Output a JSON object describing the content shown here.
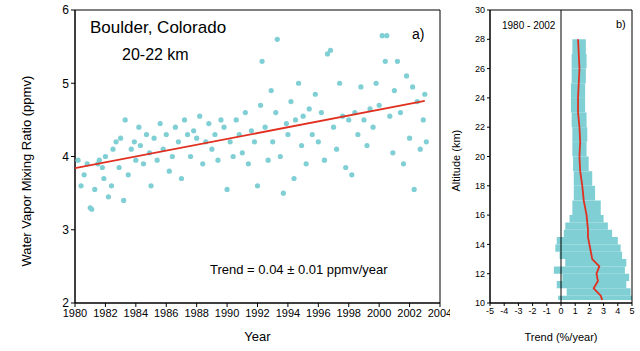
{
  "chart_data": [
    {
      "type": "scatter",
      "title": "Boulder, Colorado",
      "subtitle": "20-22 km",
      "annotations": [
        "a)",
        "Trend = 0.04 ± 0.01 ppmv/year"
      ],
      "x_label": "Year",
      "y_label": "Water Vapor Mixing Ratio (ppmv)",
      "xlim": [
        1980,
        2004
      ],
      "xticks": [
        1980,
        1982,
        1984,
        1986,
        1988,
        1990,
        1992,
        1994,
        1996,
        1998,
        2000,
        2002,
        2004
      ],
      "ylim": [
        2,
        6
      ],
      "yticks": [
        2,
        3,
        4,
        5,
        6
      ],
      "series": [
        {
          "type": "scatter",
          "color": "#7fcfd4",
          "x": [
            1980.2,
            1980.4,
            1980.6,
            1980.8,
            1981.0,
            1981.1,
            1981.3,
            1981.5,
            1981.6,
            1981.8,
            1981.9,
            1982.0,
            1982.2,
            1982.4,
            1982.5,
            1982.7,
            1982.9,
            1983.0,
            1983.2,
            1983.3,
            1983.5,
            1983.7,
            1983.9,
            1984.0,
            1984.2,
            1984.3,
            1984.5,
            1984.7,
            1984.9,
            1985.0,
            1985.2,
            1985.4,
            1985.6,
            1985.8,
            1986.0,
            1986.2,
            1986.4,
            1986.6,
            1986.8,
            1987.0,
            1987.2,
            1987.4,
            1987.6,
            1987.8,
            1988.0,
            1988.2,
            1988.4,
            1988.6,
            1988.8,
            1989.0,
            1989.2,
            1989.4,
            1989.6,
            1989.8,
            1990.0,
            1990.2,
            1990.4,
            1990.6,
            1990.8,
            1991.0,
            1991.2,
            1991.4,
            1991.6,
            1991.8,
            1992.0,
            1992.2,
            1992.3,
            1992.5,
            1992.7,
            1992.9,
            1993.0,
            1993.2,
            1993.3,
            1993.5,
            1993.7,
            1993.9,
            1994.0,
            1994.2,
            1994.4,
            1994.5,
            1994.7,
            1994.9,
            1995.0,
            1995.2,
            1995.4,
            1995.6,
            1995.8,
            1996.0,
            1996.2,
            1996.4,
            1996.6,
            1996.8,
            1997.0,
            1997.2,
            1997.4,
            1997.6,
            1997.8,
            1998.0,
            1998.2,
            1998.4,
            1998.6,
            1998.8,
            1999.0,
            1999.2,
            1999.4,
            1999.6,
            1999.8,
            2000.0,
            2000.2,
            2000.4,
            2000.5,
            2000.7,
            2000.9,
            2001.0,
            2001.2,
            2001.4,
            2001.6,
            2001.8,
            2002.0,
            2002.2,
            2002.3,
            2002.5,
            2002.7,
            2002.9,
            2003.0,
            2003.1
          ],
          "values": [
            3.95,
            3.6,
            3.75,
            3.9,
            3.3,
            3.28,
            3.55,
            3.9,
            3.95,
            3.85,
            3.7,
            4.0,
            3.45,
            3.6,
            4.1,
            4.2,
            3.85,
            4.25,
            3.4,
            4.5,
            3.75,
            4.1,
            4.2,
            3.95,
            4.4,
            4.15,
            3.9,
            4.3,
            4.05,
            3.6,
            4.25,
            3.95,
            4.45,
            4.1,
            4.3,
            3.8,
            4.0,
            4.4,
            4.2,
            3.7,
            4.5,
            4.3,
            4.0,
            4.35,
            4.25,
            4.55,
            3.9,
            4.2,
            4.45,
            4.1,
            4.3,
            3.95,
            4.5,
            4.4,
            3.55,
            4.2,
            4.0,
            4.5,
            4.3,
            4.05,
            4.6,
            3.9,
            4.35,
            4.2,
            3.6,
            4.7,
            5.3,
            4.4,
            3.95,
            4.9,
            4.2,
            4.6,
            5.6,
            4.0,
            3.5,
            4.45,
            4.3,
            4.75,
            3.7,
            4.5,
            5.0,
            4.15,
            4.55,
            3.9,
            4.65,
            4.3,
            4.85,
            4.2,
            4.6,
            3.95,
            5.4,
            5.45,
            4.4,
            4.1,
            5.0,
            4.55,
            3.85,
            4.5,
            3.75,
            4.6,
            4.3,
            4.95,
            4.5,
            4.15,
            4.65,
            4.4,
            5.0,
            4.7,
            5.65,
            5.3,
            5.65,
            4.55,
            4.05,
            4.9,
            5.3,
            4.6,
            3.9,
            5.1,
            4.25,
            4.95,
            3.55,
            4.75,
            4.1,
            4.5,
            4.85,
            4.2
          ]
        },
        {
          "type": "line",
          "color": "#e03020",
          "x": [
            1980,
            2003
          ],
          "values": [
            3.84,
            4.76
          ]
        }
      ]
    },
    {
      "type": "line",
      "annotations": [
        "b)",
        "1980 - 2002"
      ],
      "x_label": "Trend (%/year)",
      "y_label": "Altitude (km)",
      "xlim": [
        -5,
        5
      ],
      "xticks": [
        -5,
        -4,
        -3,
        -2,
        -1,
        0,
        1,
        2,
        3,
        4,
        5
      ],
      "ylim": [
        10,
        30
      ],
      "yticks": [
        10,
        12,
        14,
        16,
        18,
        20,
        22,
        24,
        26,
        28,
        30
      ],
      "reference_line_x": 0,
      "series": [
        {
          "type": "band",
          "color": "#7fcfd4",
          "y": [
            10.2,
            10.5,
            11,
            11.5,
            12,
            12.5,
            13,
            13.5,
            14,
            14.5,
            15,
            15.5,
            16,
            17,
            18,
            19,
            20,
            21,
            22,
            23,
            24,
            25,
            26,
            27,
            28
          ],
          "lower": [
            -0.2,
            0.4,
            -0.3,
            0.1,
            -0.5,
            0.3,
            -0.1,
            -0.4,
            -0.3,
            0.2,
            0.3,
            0.6,
            0.8,
            0.9,
            0.9,
            0.85,
            0.8,
            0.8,
            0.75,
            0.7,
            0.7,
            0.75,
            0.75,
            0.8,
            0.8
          ],
          "upper": [
            5.0,
            4.9,
            4.6,
            4.8,
            4.5,
            4.6,
            4.3,
            4.2,
            4.0,
            3.6,
            3.3,
            3.0,
            2.8,
            2.4,
            2.2,
            1.95,
            1.8,
            1.85,
            1.8,
            1.7,
            1.7,
            1.75,
            1.8,
            1.75,
            1.7
          ]
        },
        {
          "type": "line",
          "color": "#e03020",
          "y": [
            10.2,
            10.5,
            11,
            11.5,
            12,
            12.5,
            13,
            13.5,
            14,
            14.5,
            15,
            15.5,
            16,
            17,
            18,
            19,
            20,
            21,
            22,
            23,
            24,
            25,
            26,
            27,
            28
          ],
          "x": [
            2.9,
            2.8,
            2.3,
            2.6,
            2.5,
            2.7,
            2.2,
            2.1,
            2.0,
            1.9,
            1.9,
            1.85,
            1.8,
            1.6,
            1.5,
            1.35,
            1.3,
            1.35,
            1.3,
            1.2,
            1.2,
            1.25,
            1.3,
            1.25,
            1.2
          ]
        }
      ]
    }
  ]
}
